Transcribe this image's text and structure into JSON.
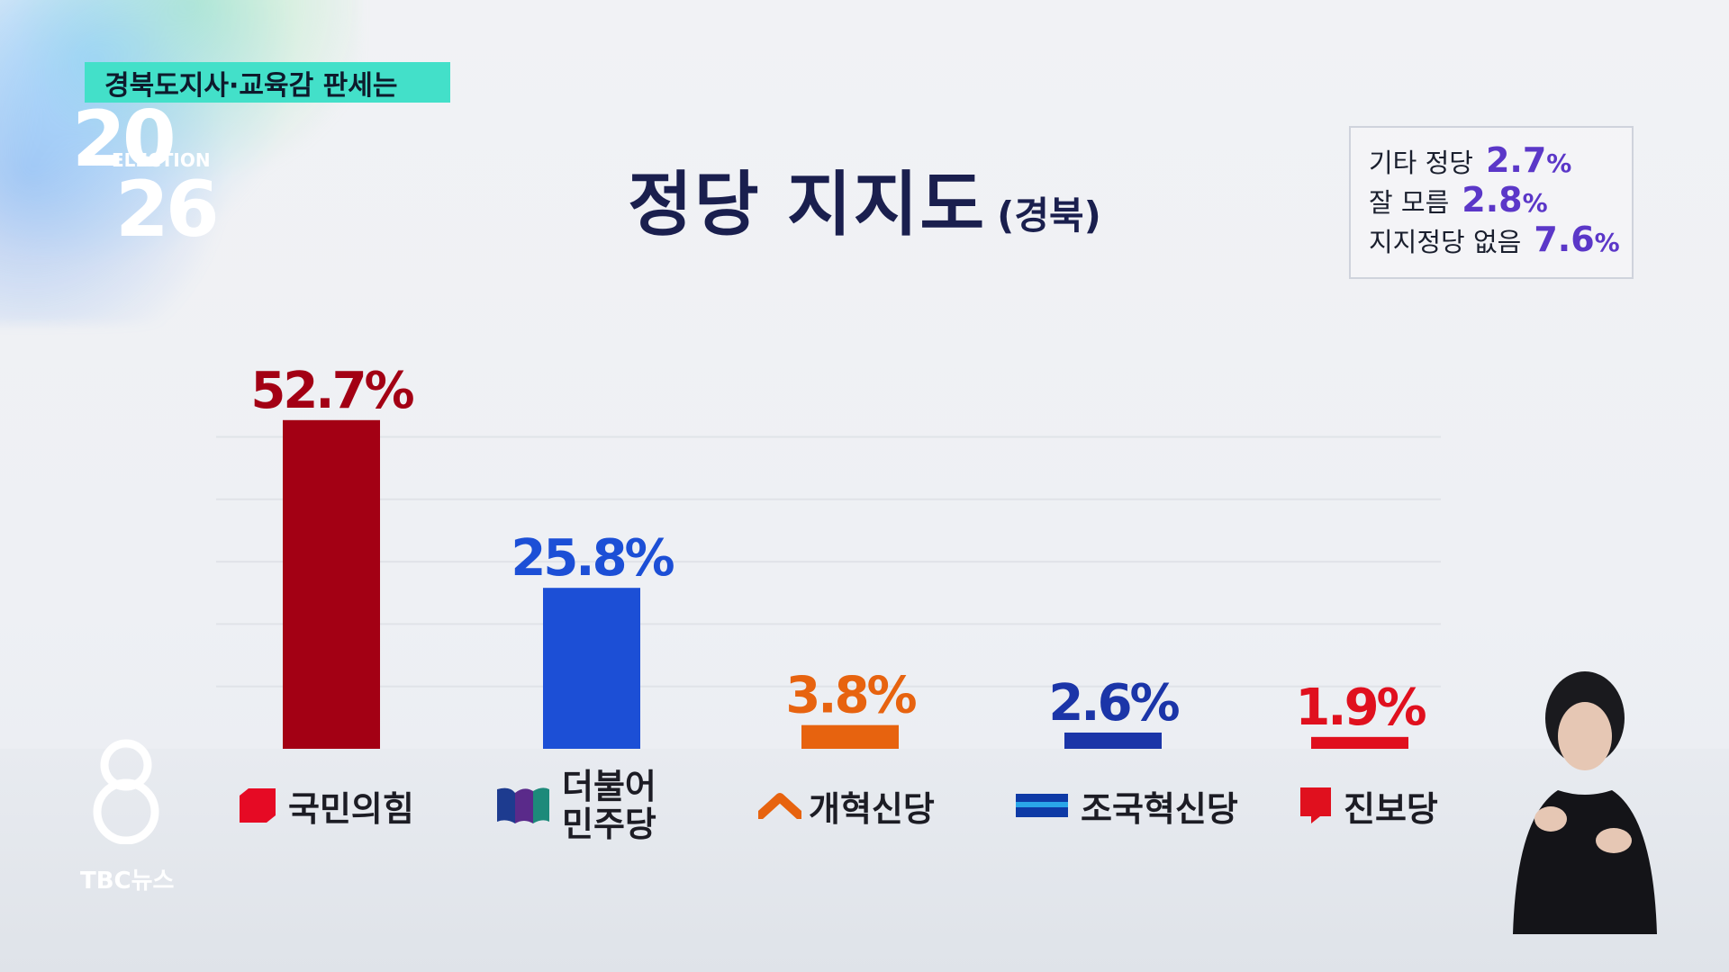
{
  "topic_tag": "경북도지사·교육감 판세는",
  "logo": {
    "line1": "20",
    "middle": "ELECTION",
    "line2": "26"
  },
  "title": {
    "main": "정당 지지도",
    "sub": "(경북)"
  },
  "others": [
    {
      "label": "기타 정당",
      "value": "2.7",
      "unit": "%"
    },
    {
      "label": "잘 모름",
      "value": "2.8",
      "unit": "%"
    },
    {
      "label": "지지정당 없음",
      "value": "7.6",
      "unit": "%"
    }
  ],
  "chart_data": {
    "type": "bar",
    "title": "정당 지지도",
    "subtitle": "(경북)",
    "categories": [
      "국민의힘",
      "더불어 민주당",
      "개혁신당",
      "조국혁신당",
      "진보당"
    ],
    "values": [
      52.7,
      25.8,
      3.8,
      2.6,
      1.9
    ],
    "data_labels": [
      "52.7%",
      "25.8%",
      "3.8%",
      "2.6%",
      "1.9%"
    ],
    "colors": [
      "#a30014",
      "#1c4fd6",
      "#e7630f",
      "#1b35a8",
      "#e0101e"
    ],
    "ylim": [
      0,
      60
    ],
    "grid": true,
    "legend": "none"
  },
  "party_labels": [
    {
      "name": "국민의힘",
      "lines": [
        "국민의힘"
      ],
      "icon": "ppp-icon"
    },
    {
      "name": "더불어 민주당",
      "lines": [
        "더불어",
        "민주당"
      ],
      "icon": "minjoo-icon"
    },
    {
      "name": "개혁신당",
      "lines": [
        "개혁신당"
      ],
      "icon": "reform-icon"
    },
    {
      "name": "조국혁신당",
      "lines": [
        "조국혁신당"
      ],
      "icon": "rebuilding-icon"
    },
    {
      "name": "진보당",
      "lines": [
        "진보당"
      ],
      "icon": "progressive-icon"
    }
  ],
  "broadcaster": {
    "channel": "8",
    "name": "TBC뉴스"
  }
}
